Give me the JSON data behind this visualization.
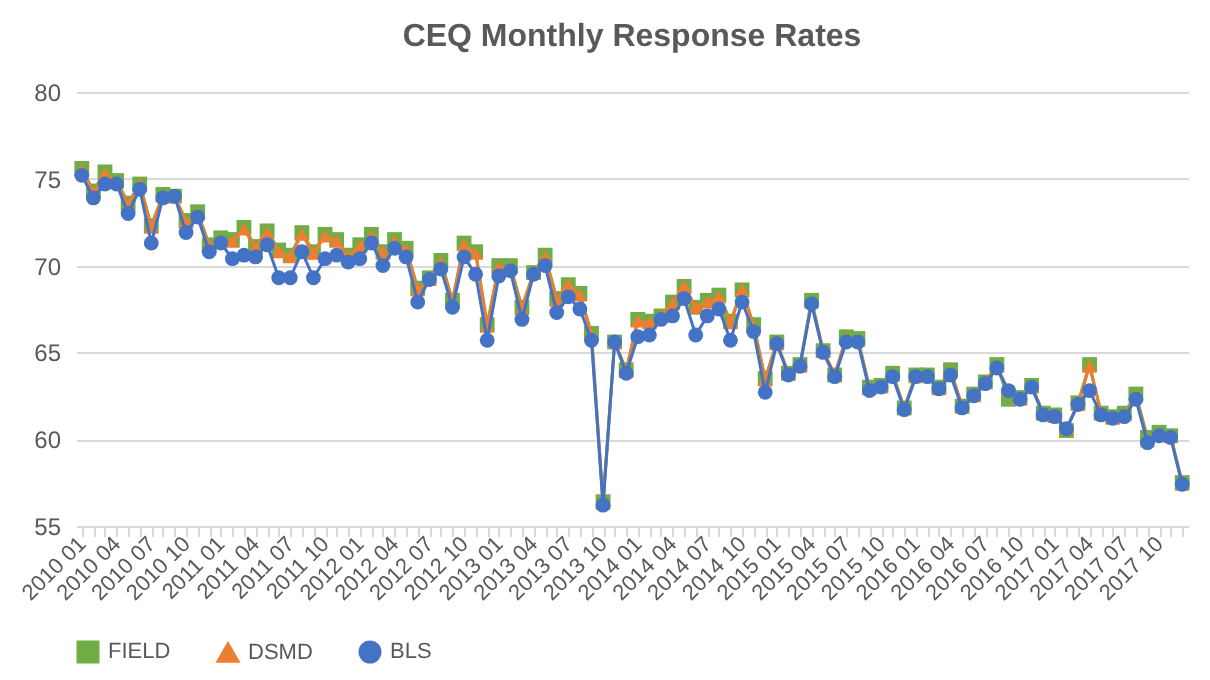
{
  "chart_data": {
    "type": "line",
    "title": "CEQ Monthly Response Rates",
    "categories": [
      "2010 01",
      null,
      null,
      "2010 04",
      null,
      null,
      "2010 07",
      null,
      null,
      "2010 10",
      null,
      null,
      "2011 01",
      null,
      null,
      "2011 04",
      null,
      null,
      "2011 07",
      null,
      null,
      "2011 10",
      null,
      null,
      "2012 01",
      null,
      null,
      "2012 04",
      null,
      null,
      "2012 07",
      null,
      null,
      "2012 10",
      null,
      null,
      "2013 01",
      null,
      null,
      "2013 04",
      null,
      null,
      "2013 07",
      null,
      null,
      "2013 10",
      null,
      null,
      "2014 01",
      null,
      null,
      "2014 04",
      null,
      null,
      "2014 07",
      null,
      null,
      "2014 10",
      null,
      null,
      "2015 01",
      null,
      null,
      "2015 04",
      null,
      null,
      "2015 07",
      null,
      null,
      "2015 10",
      null,
      null,
      "2016 01",
      null,
      null,
      "2016 04",
      null,
      null,
      "2016 07",
      null,
      null,
      "2016 10",
      null,
      null,
      "2017 01",
      null,
      null,
      "2017 04",
      null,
      null,
      "2017 07",
      null,
      null,
      "2017 10",
      null,
      null
    ],
    "series": [
      {
        "name": "FIELD",
        "color": "#70ad47",
        "marker": "square",
        "values": [
          75.6,
          74.3,
          75.4,
          74.9,
          73.6,
          74.7,
          72.3,
          74.1,
          74.0,
          72.6,
          73.1,
          71.2,
          71.6,
          71.5,
          72.2,
          71.1,
          72.0,
          70.9,
          70.6,
          71.9,
          70.8,
          71.8,
          71.5,
          70.6,
          71.2,
          71.8,
          70.8,
          71.5,
          71.0,
          68.7,
          69.3,
          70.3,
          68.0,
          71.3,
          70.8,
          66.6,
          70.0,
          70.0,
          67.6,
          69.6,
          70.6,
          68.1,
          68.9,
          68.4,
          66.1,
          56.4,
          65.6,
          64.0,
          66.9,
          66.8,
          67.1,
          67.9,
          68.8,
          67.6,
          68.0,
          68.3,
          66.8,
          68.6,
          66.6,
          63.5,
          65.6,
          63.8,
          64.3,
          68.0,
          65.1,
          63.7,
          65.9,
          65.8,
          63.0,
          63.1,
          63.8,
          61.8,
          63.7,
          63.7,
          63.0,
          64.0,
          61.9,
          62.6,
          63.3,
          64.3,
          62.3,
          62.4,
          63.1,
          61.5,
          61.4,
          60.5,
          62.1,
          64.3,
          61.5,
          61.3,
          61.5,
          62.6,
          60.1,
          60.4,
          60.2,
          57.5
        ]
      },
      {
        "name": "DSMD",
        "color": "#ed7d31",
        "marker": "triangle",
        "values": [
          75.5,
          74.2,
          75.3,
          74.8,
          73.5,
          74.7,
          72.2,
          74.0,
          74.0,
          72.5,
          73.0,
          71.1,
          71.5,
          71.4,
          72.1,
          71.0,
          71.9,
          70.8,
          70.5,
          71.8,
          70.7,
          71.7,
          71.4,
          70.5,
          71.1,
          71.7,
          70.7,
          71.4,
          70.9,
          68.6,
          69.2,
          70.2,
          67.9,
          71.2,
          70.7,
          66.5,
          69.9,
          69.9,
          67.5,
          69.6,
          70.5,
          68.0,
          68.9,
          68.3,
          66.0,
          56.3,
          65.6,
          63.9,
          66.8,
          66.7,
          67.1,
          67.8,
          68.8,
          67.6,
          67.9,
          68.2,
          66.7,
          68.6,
          66.5,
          63.4,
          65.5,
          63.8,
          64.2,
          67.9,
          65.1,
          63.7,
          65.8,
          65.7,
          62.9,
          63.0,
          63.7,
          61.8,
          63.6,
          63.7,
          62.9,
          63.9,
          61.9,
          62.5,
          63.3,
          64.2,
          62.8,
          62.3,
          63.0,
          61.5,
          61.3,
          60.6,
          62.0,
          64.2,
          61.5,
          61.2,
          61.4,
          62.5,
          59.9,
          60.3,
          60.2,
          57.4
        ]
      },
      {
        "name": "BLS",
        "color": "#4472c4",
        "marker": "circle",
        "values": [
          75.2,
          73.9,
          74.7,
          74.7,
          73.0,
          74.4,
          71.3,
          73.9,
          74.0,
          71.9,
          72.8,
          70.8,
          71.3,
          70.4,
          70.6,
          70.5,
          71.2,
          69.3,
          69.3,
          70.8,
          69.3,
          70.4,
          70.6,
          70.2,
          70.4,
          71.3,
          70.0,
          71.0,
          70.5,
          67.9,
          69.2,
          69.8,
          67.6,
          70.5,
          69.5,
          65.7,
          69.4,
          69.7,
          66.9,
          69.5,
          70.0,
          67.3,
          68.2,
          67.5,
          65.7,
          56.2,
          65.6,
          63.8,
          65.9,
          66.0,
          66.9,
          67.1,
          68.1,
          66.0,
          67.1,
          67.5,
          65.7,
          67.9,
          66.2,
          62.7,
          65.5,
          63.7,
          64.2,
          67.8,
          65.0,
          63.6,
          65.6,
          65.6,
          62.8,
          63.0,
          63.6,
          61.7,
          63.6,
          63.6,
          62.9,
          63.7,
          61.8,
          62.5,
          63.2,
          64.1,
          62.8,
          62.3,
          63.0,
          61.4,
          61.3,
          60.6,
          62.0,
          62.8,
          61.4,
          61.2,
          61.3,
          62.3,
          59.8,
          60.2,
          60.1,
          57.4
        ]
      }
    ],
    "ylim": [
      55,
      80
    ],
    "yticks": [
      55,
      60,
      65,
      70,
      75,
      80
    ],
    "grid": "y",
    "legend": "bottom"
  }
}
